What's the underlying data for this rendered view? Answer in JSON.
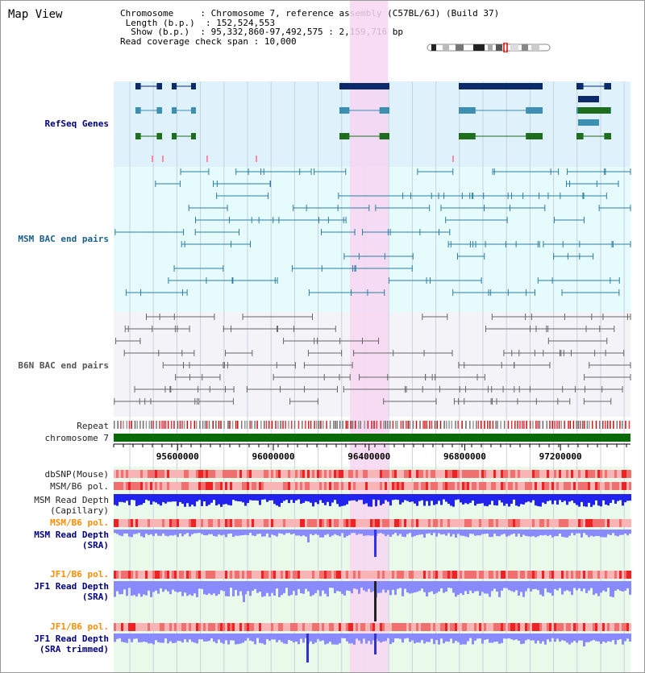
{
  "view_title": "Map View",
  "info": {
    "chromosome_label": "Chromosome",
    "chromosome_value": "Chromosome 7, reference assembly (C57BL/6J) (Build 37)",
    "length_label": "Length (b.p.)",
    "length_value": "152,524,553",
    "show_label": "Show (b.p.)",
    "show_value": "95,332,860-97,492,575 : 2,159,716 bp",
    "coverage_label": "Read coverage check span",
    "coverage_value": "10,000"
  },
  "tracks": {
    "refseq": "RefSeq Genes",
    "msm_bac": "MSM BAC end pairs",
    "b6n_bac": "B6N BAC end pairs",
    "repeat": "Repeat",
    "chromosome": "chromosome 7",
    "dbsnp": "dbSNP(Mouse)",
    "msm_pol1": "MSM/B6 pol.",
    "msm_depth_cap_1": "MSM Read Depth",
    "msm_depth_cap_2": "(Capillary)",
    "msm_pol2": "MSM/B6 pol.",
    "msm_depth_sra_1": "MSM Read Depth",
    "msm_depth_sra_2": "(SRA)",
    "jf1_pol1": "JF1/B6 pol.",
    "jf1_depth_sra_1": "JF1 Read Depth",
    "jf1_depth_sra_2": "(SRA)",
    "jf1_pol2": "JF1/B6 pol.",
    "jf1_depth_trim_1": "JF1 Read Depth",
    "jf1_depth_trim_2": "(SRA trimmed)"
  },
  "axis": {
    "ticks": [
      {
        "value": 95600000,
        "label": "95600000"
      },
      {
        "value": 96000000,
        "label": "96000000"
      },
      {
        "value": 96400000,
        "label": "96400000"
      },
      {
        "value": 96800000,
        "label": "96800000"
      },
      {
        "value": 97200000,
        "label": "97200000"
      }
    ],
    "start": 95332860,
    "end": 97492575
  },
  "highlight": {
    "start": 96320000,
    "end": 96480000,
    "color": "#f7d6f2"
  },
  "colors": {
    "refseq_bg": "#dff2fb",
    "msm_bg": "#e6fbfb",
    "b6n_bg": "#f4f4f8",
    "depth_bg": "#eafaea",
    "refseq_label": "#000080",
    "msm_label": "#1a5f8a",
    "b6n_label": "#555555",
    "pol_label": "#ff8c00",
    "navy": "#0a2a6a",
    "teal": "#3c8fb0",
    "green": "#1e6e1e",
    "chromosome_green": "#0a6a0a",
    "depth_blue": "#2222ee",
    "depth_lightblue": "#8a8aff"
  }
}
